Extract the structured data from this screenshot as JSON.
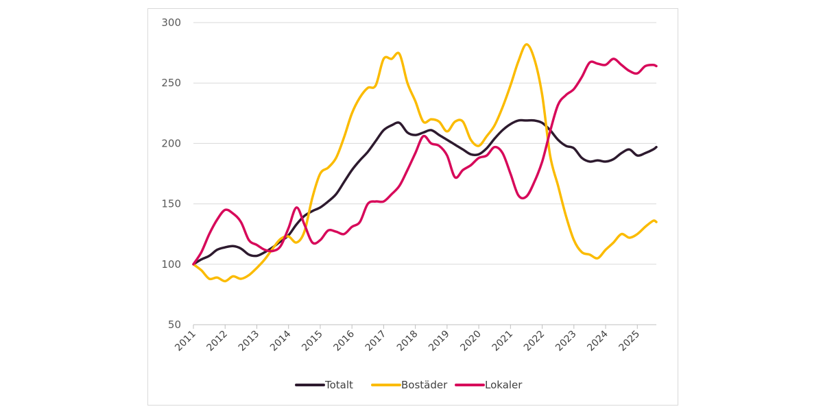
{
  "chart_data": {
    "type": "line",
    "title": "",
    "xlabel": "",
    "ylabel": "",
    "ylim": [
      50,
      300
    ],
    "yticks": [
      50,
      100,
      150,
      200,
      250,
      300
    ],
    "xlim": [
      2011,
      2025.6
    ],
    "xticks": [
      "2011",
      "2012",
      "2013",
      "2014",
      "2015",
      "2016",
      "2017",
      "2018",
      "2019",
      "2020",
      "2021",
      "2022",
      "2023",
      "2024",
      "2025"
    ],
    "grid": "horizontal",
    "legend": "bottom",
    "series": [
      {
        "name": "Totalt",
        "color": "#2d1a2e",
        "x": [
          2011,
          2011.25,
          2011.5,
          2011.75,
          2012,
          2012.25,
          2012.5,
          2012.75,
          2013,
          2013.25,
          2013.5,
          2013.75,
          2014,
          2014.25,
          2014.5,
          2014.75,
          2015,
          2015.25,
          2015.5,
          2015.75,
          2016,
          2016.25,
          2016.5,
          2016.75,
          2017,
          2017.25,
          2017.5,
          2017.75,
          2018,
          2018.25,
          2018.5,
          2018.75,
          2019,
          2019.25,
          2019.5,
          2019.75,
          2020,
          2020.25,
          2020.5,
          2020.75,
          2021,
          2021.25,
          2021.5,
          2021.75,
          2022,
          2022.25,
          2022.5,
          2022.75,
          2023,
          2023.25,
          2023.5,
          2023.75,
          2024,
          2024.25,
          2024.5,
          2024.75,
          2025,
          2025.25,
          2025.5,
          2025.6
        ],
        "values": [
          100,
          104,
          107,
          112,
          114,
          115,
          113,
          108,
          107,
          110,
          114,
          119,
          124,
          133,
          140,
          144,
          147,
          152,
          158,
          168,
          178,
          186,
          193,
          202,
          211,
          215,
          217,
          209,
          207,
          209,
          211,
          207,
          203,
          199,
          195,
          191,
          191,
          196,
          204,
          211,
          216,
          219,
          219,
          219,
          217,
          211,
          203,
          198,
          196,
          188,
          185,
          186,
          185,
          187,
          192,
          195,
          190,
          192,
          195,
          197
        ]
      },
      {
        "name": "Bostäder",
        "color": "#fbbb00",
        "x": [
          2011,
          2011.25,
          2011.5,
          2011.75,
          2012,
          2012.25,
          2012.5,
          2012.75,
          2013,
          2013.25,
          2013.5,
          2013.75,
          2014,
          2014.25,
          2014.5,
          2014.75,
          2015,
          2015.25,
          2015.5,
          2015.75,
          2016,
          2016.25,
          2016.5,
          2016.75,
          2017,
          2017.25,
          2017.5,
          2017.75,
          2018,
          2018.25,
          2018.5,
          2018.75,
          2019,
          2019.25,
          2019.5,
          2019.75,
          2020,
          2020.25,
          2020.5,
          2020.75,
          2021,
          2021.25,
          2021.5,
          2021.75,
          2022,
          2022.25,
          2022.5,
          2022.75,
          2023,
          2023.25,
          2023.5,
          2023.75,
          2024,
          2024.25,
          2024.5,
          2024.75,
          2025,
          2025.25,
          2025.5,
          2025.6
        ],
        "values": [
          100,
          95,
          88,
          89,
          86,
          90,
          88,
          91,
          97,
          104,
          113,
          121,
          123,
          118,
          127,
          155,
          175,
          180,
          188,
          205,
          225,
          238,
          246,
          248,
          270,
          270,
          274,
          250,
          235,
          218,
          220,
          218,
          210,
          218,
          218,
          203,
          198,
          206,
          215,
          230,
          248,
          268,
          282,
          270,
          240,
          190,
          165,
          140,
          120,
          110,
          108,
          105,
          112,
          118,
          125,
          122,
          125,
          131,
          136,
          135
        ]
      },
      {
        "name": "Lokaler",
        "color": "#d7095a",
        "x": [
          2011,
          2011.25,
          2011.5,
          2011.75,
          2012,
          2012.25,
          2012.5,
          2012.75,
          2013,
          2013.25,
          2013.5,
          2013.75,
          2014,
          2014.25,
          2014.5,
          2014.75,
          2015,
          2015.25,
          2015.5,
          2015.75,
          2016,
          2016.25,
          2016.5,
          2016.75,
          2017,
          2017.25,
          2017.5,
          2017.75,
          2018,
          2018.25,
          2018.5,
          2018.75,
          2019,
          2019.25,
          2019.5,
          2019.75,
          2020,
          2020.25,
          2020.5,
          2020.75,
          2021,
          2021.25,
          2021.5,
          2021.75,
          2022,
          2022.25,
          2022.5,
          2022.75,
          2023,
          2023.25,
          2023.5,
          2023.75,
          2024,
          2024.25,
          2024.5,
          2024.75,
          2025,
          2025.25,
          2025.5,
          2025.6
        ],
        "values": [
          100,
          110,
          125,
          137,
          145,
          142,
          135,
          120,
          116,
          112,
          111,
          115,
          130,
          147,
          133,
          118,
          120,
          128,
          127,
          125,
          131,
          135,
          150,
          152,
          152,
          158,
          165,
          178,
          192,
          206,
          200,
          198,
          190,
          172,
          178,
          182,
          188,
          190,
          197,
          192,
          175,
          157,
          156,
          168,
          185,
          210,
          232,
          240,
          245,
          255,
          267,
          266,
          265,
          270,
          265,
          260,
          258,
          264,
          265,
          264
        ]
      }
    ]
  }
}
